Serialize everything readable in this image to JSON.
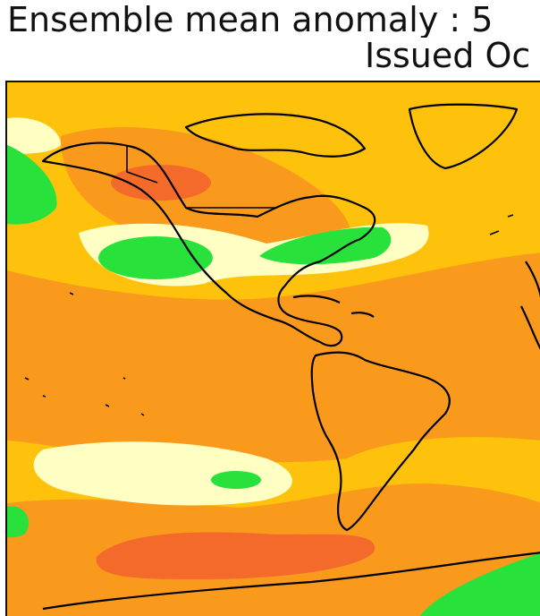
{
  "title": {
    "line1": "Ensemble mean anomaly : 5",
    "line2": "Issued Oc"
  },
  "map": {
    "region": "Americas",
    "colors": {
      "base": "#fec10c",
      "dark_orange": "#fa9a1d",
      "red_orange": "#f46a2a",
      "cream": "#ffffc3",
      "green": "#28e13a",
      "coast": "#000000",
      "frame": "#111111"
    },
    "features": [
      {
        "name": "anomaly-red-alaska",
        "color": "red_orange"
      },
      {
        "name": "anomaly-green-pacific",
        "color": "green"
      },
      {
        "name": "anomaly-green-east-us",
        "color": "green"
      },
      {
        "name": "anomaly-green-south-pacific",
        "color": "green"
      },
      {
        "name": "anomaly-red-south-pacific",
        "color": "red_orange"
      },
      {
        "name": "anomaly-green-antarctic",
        "color": "green"
      }
    ]
  }
}
